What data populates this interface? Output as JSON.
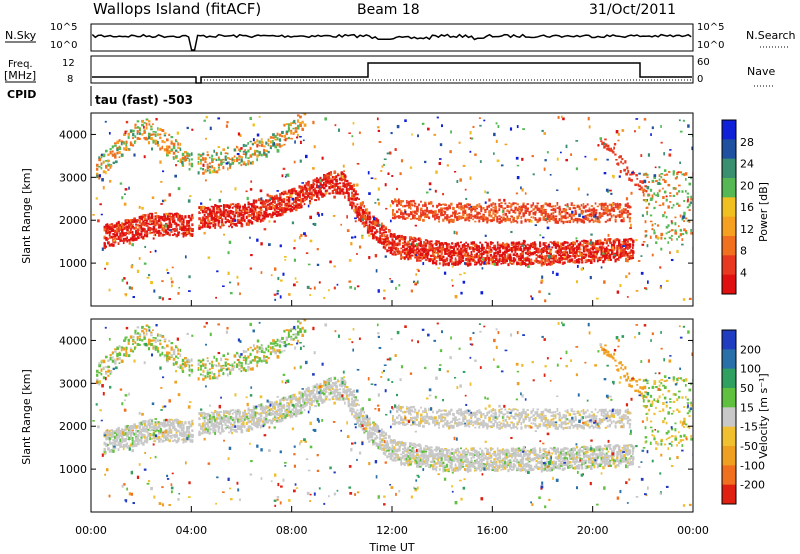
{
  "header": {
    "station": "Wallops Island (fitACF)",
    "beam": "Beam 18",
    "date": "31/Oct/2011"
  },
  "aux": {
    "nsky_label": "N.Sky",
    "nsearch_label": "N.Search",
    "noise_ticks_top": "10^5",
    "noise_ticks_bottom": "10^0",
    "freq_label": "Freq.",
    "freq_unit": "[MHz]",
    "freq_tick_top": "12",
    "freq_tick_bottom": "8",
    "nave_label": "Nave",
    "nave_tick_top": "60",
    "nave_tick_bottom": "0",
    "cpid_label": "CPID",
    "cpid_text": "tau (fast) -503"
  },
  "axes": {
    "ylabel": "Slant Range [km]",
    "xlabel": "Time UT",
    "y_ticks": [
      1000,
      2000,
      3000,
      4000
    ],
    "x_ticks": [
      "00:00",
      "04:00",
      "08:00",
      "12:00",
      "16:00",
      "20:00",
      "00:00"
    ]
  },
  "power_scale": {
    "label": "Power [dB]",
    "ticks": [
      "4",
      "8",
      "12",
      "16",
      "20",
      "24",
      "28"
    ],
    "colors": [
      "#1020d8",
      "#2050a0",
      "#3a8f70",
      "#55b855",
      "#f0c020",
      "#f5a020",
      "#f07020",
      "#e83820",
      "#e01010"
    ]
  },
  "velocity_scale": {
    "label": "Velocity [m s⁻¹]",
    "ticks": [
      "200",
      "100",
      "50",
      "15",
      "-15",
      "-50",
      "-100",
      "-200"
    ],
    "colors": [
      "#203cc0",
      "#2a70a8",
      "#30a060",
      "#60c040",
      "#c8c8c8",
      "#f0c030",
      "#f0a020",
      "#f07020",
      "#e02010"
    ]
  },
  "chart_data": [
    {
      "type": "heatmap",
      "title": "Power",
      "xlabel": "Time UT",
      "ylabel": "Slant Range [km]",
      "x_range": [
        "00:00",
        "24:00"
      ],
      "ylim": [
        0,
        4500
      ],
      "colorbar": {
        "label": "Power [dB]",
        "range": [
          0,
          30
        ]
      },
      "bands": [
        {
          "x": [
            0.5,
            2.5,
            4.0,
            4.3,
            6.0,
            8.0,
            9.5,
            10.0,
            11.0,
            12.0,
            14.0,
            18.0,
            21.5
          ],
          "y": [
            1650,
            1950,
            1900,
            2100,
            2150,
            2500,
            2900,
            2900,
            2000,
            1450,
            1250,
            1250,
            1350
          ]
        },
        {
          "x": [
            0.2,
            2.0,
            4.0,
            4.2,
            7.0,
            8.5
          ],
          "y": [
            3200,
            4200,
            3400,
            3300,
            3700,
            4400
          ]
        },
        {
          "x": [
            12.0,
            14.0,
            18.0,
            21.0
          ],
          "y": [
            2300,
            2200,
            2200,
            2200
          ]
        }
      ]
    },
    {
      "type": "heatmap",
      "title": "Velocity",
      "xlabel": "Time UT",
      "ylabel": "Slant Range [km]",
      "x_range": [
        "00:00",
        "24:00"
      ],
      "ylim": [
        0,
        4500
      ],
      "colorbar": {
        "label": "Velocity [m s-1]",
        "range": [
          -200,
          200
        ]
      }
    }
  ]
}
